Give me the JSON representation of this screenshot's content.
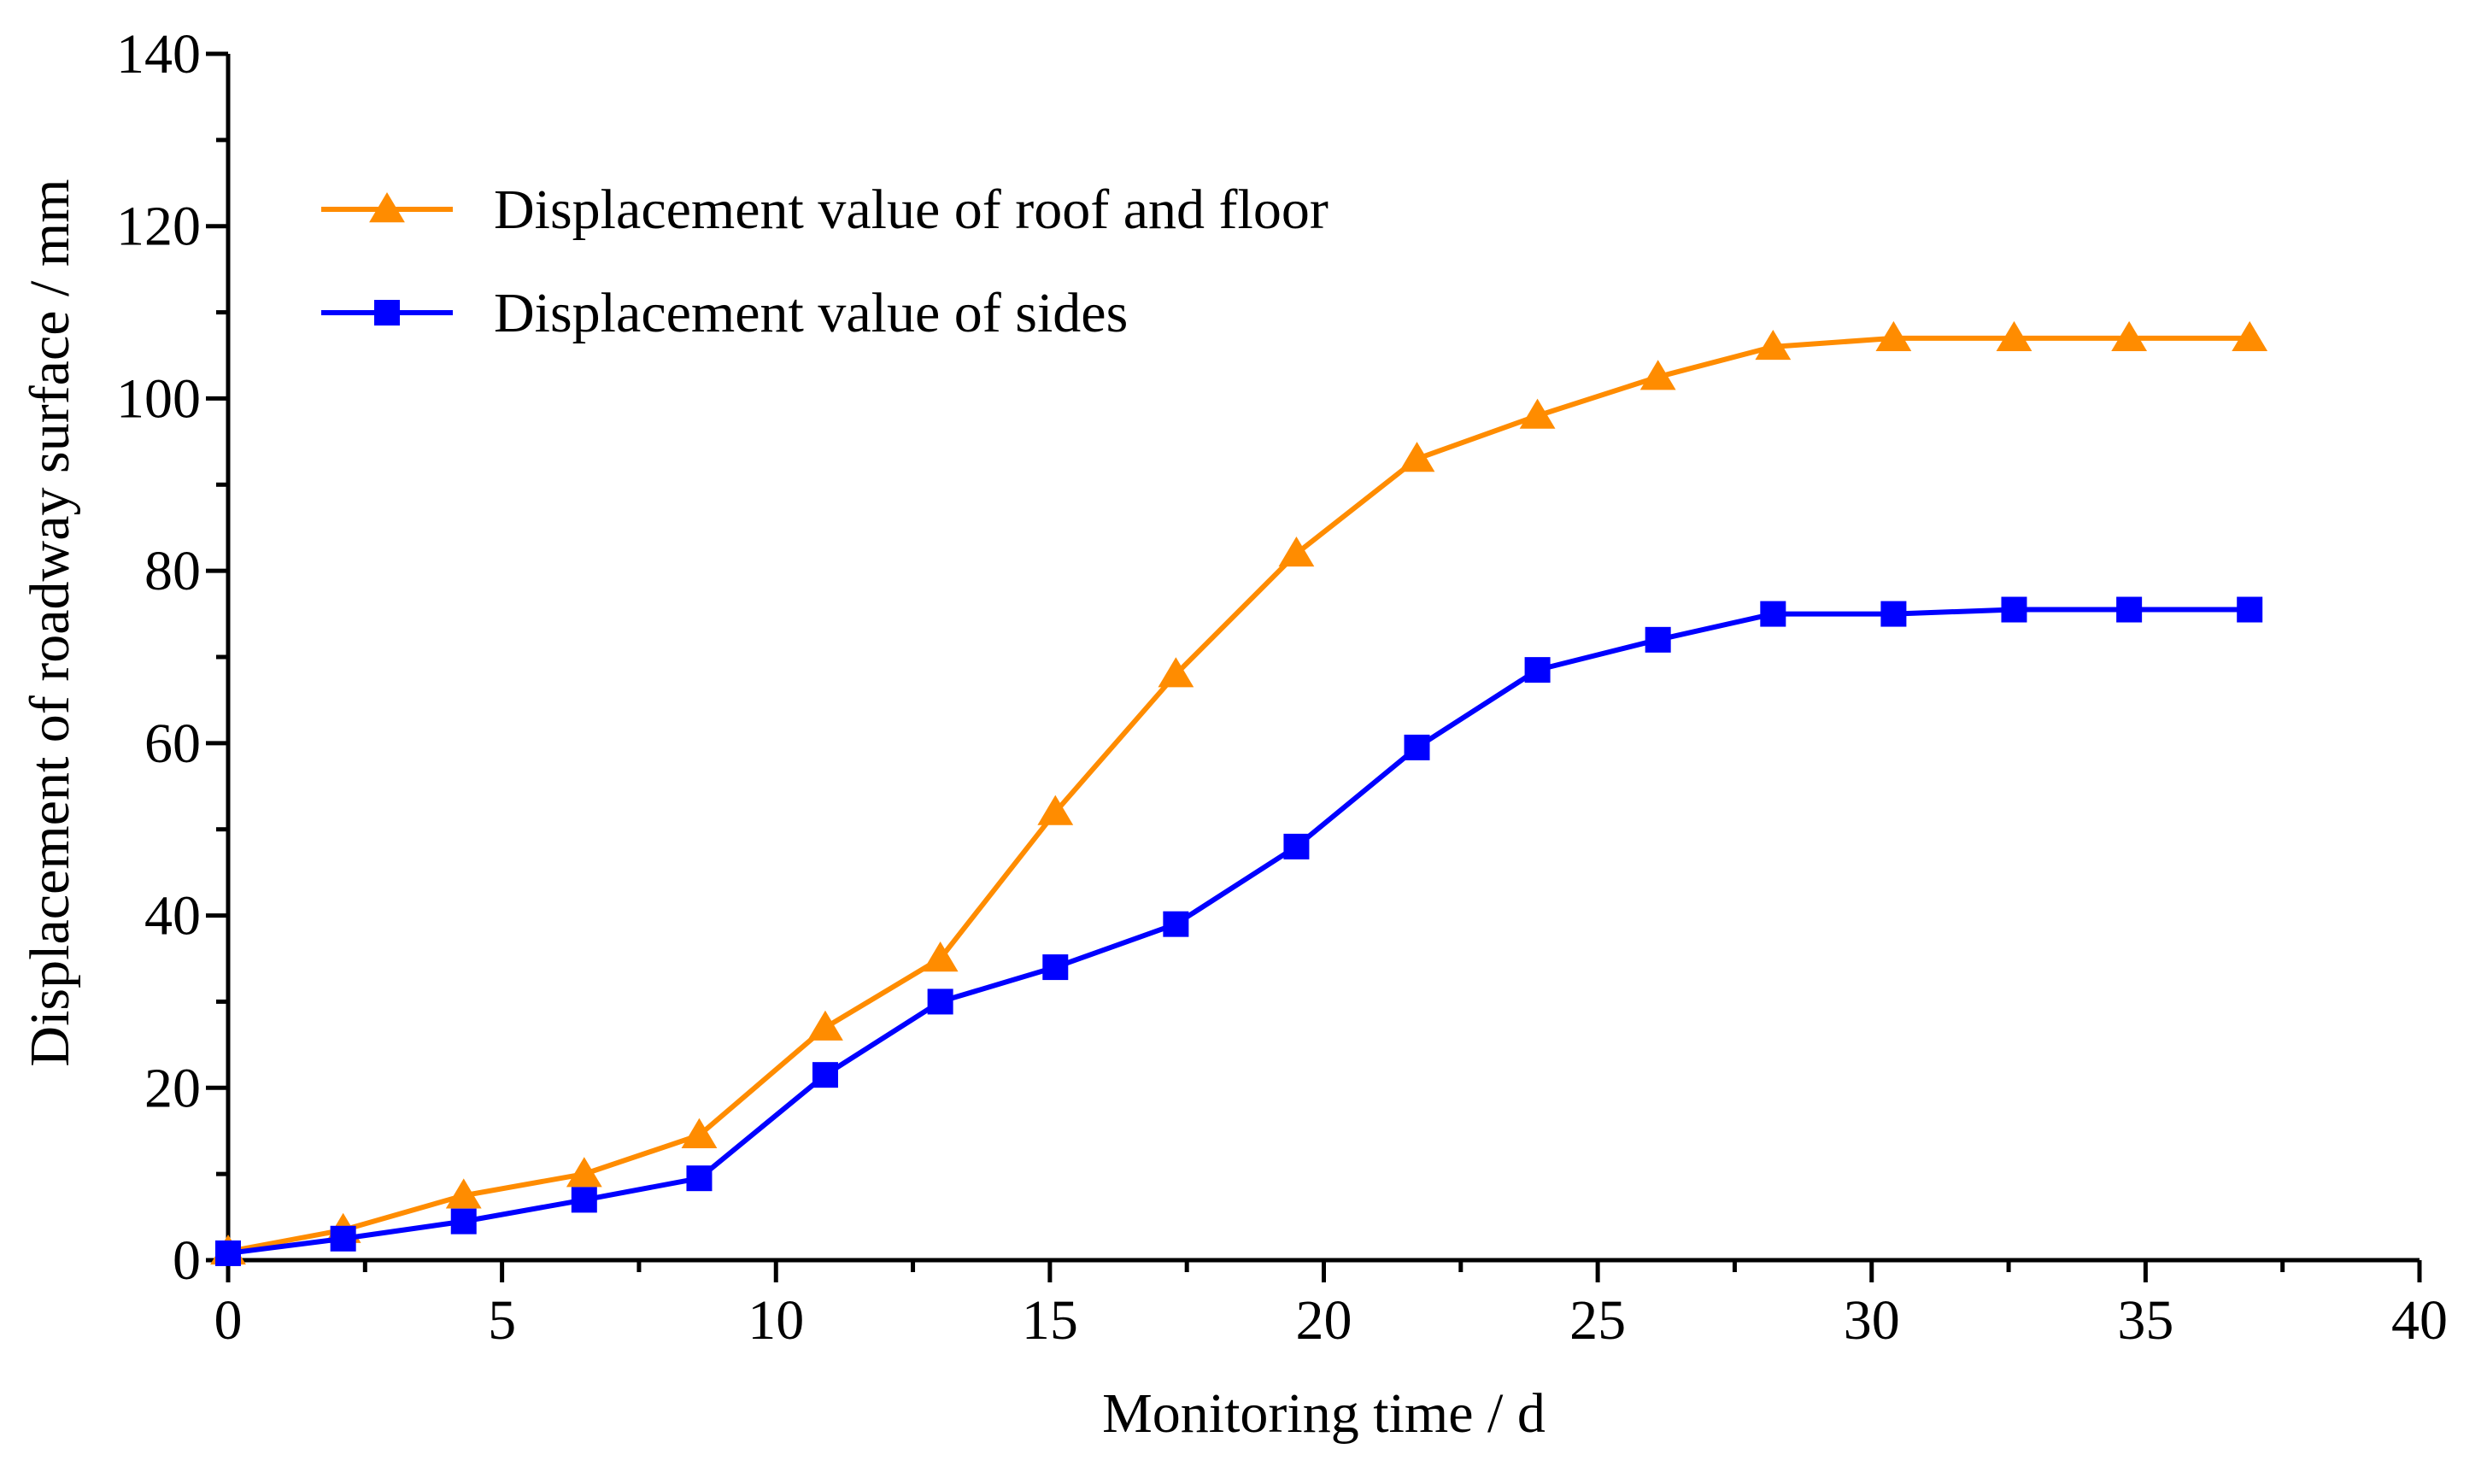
{
  "chart_data": {
    "type": "line",
    "title": "",
    "xlabel": "Monitoring time / d",
    "ylabel": "Displacement of roadway surface / mm",
    "xlim": [
      0,
      40
    ],
    "ylim": [
      0,
      140
    ],
    "xticks": [
      "0",
      "5",
      "10",
      "15",
      "20",
      "25",
      "30",
      "35",
      "40"
    ],
    "yticks": [
      "0",
      "20",
      "40",
      "60",
      "80",
      "100",
      "120",
      "140"
    ],
    "grid": false,
    "legend_position": "top-left",
    "series": [
      {
        "name": "Displacement value of roof and floor",
        "color": "#FF8C00",
        "marker": "triangle",
        "x": [
          0,
          2.1,
          4.3,
          6.5,
          8.6,
          10.9,
          13.0,
          15.1,
          17.3,
          19.5,
          21.7,
          23.9,
          26.1,
          28.2,
          30.4,
          32.6,
          34.7,
          36.9
        ],
        "y": [
          1,
          3.5,
          7.5,
          10,
          14.5,
          27,
          35,
          52,
          68,
          82,
          93,
          98,
          102.5,
          106,
          107,
          107,
          107,
          107
        ]
      },
      {
        "name": "Displacement value of sides",
        "color": "#0000FF",
        "marker": "square",
        "x": [
          0,
          2.1,
          4.3,
          6.5,
          8.6,
          10.9,
          13.0,
          15.1,
          17.3,
          19.5,
          21.7,
          23.9,
          26.1,
          28.2,
          30.4,
          32.6,
          34.7,
          36.9
        ],
        "y": [
          0.8,
          2.5,
          4.5,
          7,
          9.5,
          21.5,
          30,
          34,
          39,
          48,
          59.5,
          68.5,
          72,
          75,
          75,
          75.5,
          75.5,
          75.5
        ]
      }
    ]
  }
}
